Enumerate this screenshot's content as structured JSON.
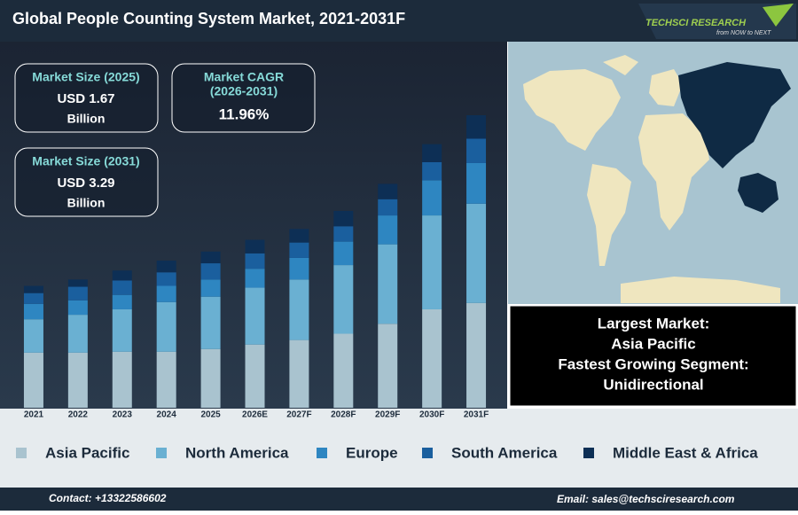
{
  "header": {
    "title": "Global People Counting System Market, 2021-2031F",
    "logo": "TECHSCI RESEARCH",
    "tagline": "from NOW to NEXT"
  },
  "cards": [
    {
      "label": "Market Size (2025)",
      "value": "USD 1.67",
      "unit": "Billion"
    },
    {
      "label": "Market CAGR",
      "period": "(2026-2031)",
      "value": "11.96%"
    },
    {
      "label": "Market Size (2031)",
      "value": "USD 3.29",
      "unit": "Billion"
    }
  ],
  "highlights": [
    "Largest Market:",
    "Asia Pacific",
    "Fastest Growing Segment:",
    "Unidirectional"
  ],
  "chart_data": {
    "type": "bar",
    "stacked": true,
    "categories": [
      "2021",
      "2022",
      "2023",
      "2024",
      "2025",
      "2026E",
      "2027F",
      "2028F",
      "2029F",
      "2030F",
      "2031F"
    ],
    "series": [
      {
        "name": "Asia Pacific",
        "color": "#a9c3cf",
        "values": [
          61,
          61,
          62,
          62,
          65,
          70,
          75,
          82,
          93,
          109,
          116
        ]
      },
      {
        "name": "North America",
        "color": "#6ab0d2",
        "values": [
          37,
          42,
          47,
          55,
          58,
          63,
          67,
          76,
          88,
          104,
          110
        ]
      },
      {
        "name": "Europe",
        "color": "#2e86c1",
        "values": [
          17,
          16,
          16,
          18,
          19,
          21,
          24,
          26,
          32,
          39,
          45
        ]
      },
      {
        "name": "South America",
        "color": "#1a5f9e",
        "values": [
          12,
          15,
          16,
          15,
          18,
          17,
          17,
          17,
          18,
          20,
          27
        ]
      },
      {
        "name": "Middle East & Africa",
        "color": "#0d2f55",
        "values": [
          8,
          8,
          11,
          13,
          13,
          15,
          15,
          17,
          17,
          20,
          26
        ]
      }
    ]
  },
  "footer": {
    "contact": "Contact: +13322586602",
    "email": "Email: sales@techsciresearch.com"
  }
}
